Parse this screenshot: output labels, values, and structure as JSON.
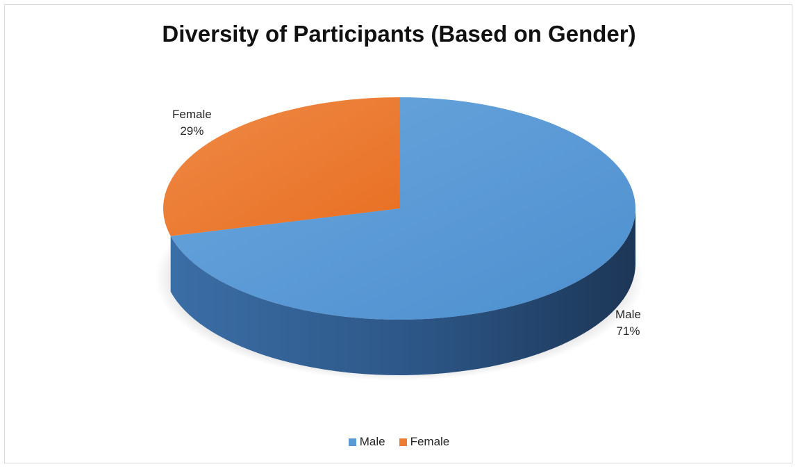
{
  "chart_data": {
    "type": "pie",
    "style": "3d",
    "title": "Diversity of Participants (Based on Gender)",
    "slices": [
      {
        "label": "Male",
        "value": 71,
        "display": "71%",
        "color": "#5b9bd5"
      },
      {
        "label": "Female",
        "value": 29,
        "display": "29%",
        "color": "#ed7d31"
      }
    ],
    "legend_position": "bottom"
  }
}
